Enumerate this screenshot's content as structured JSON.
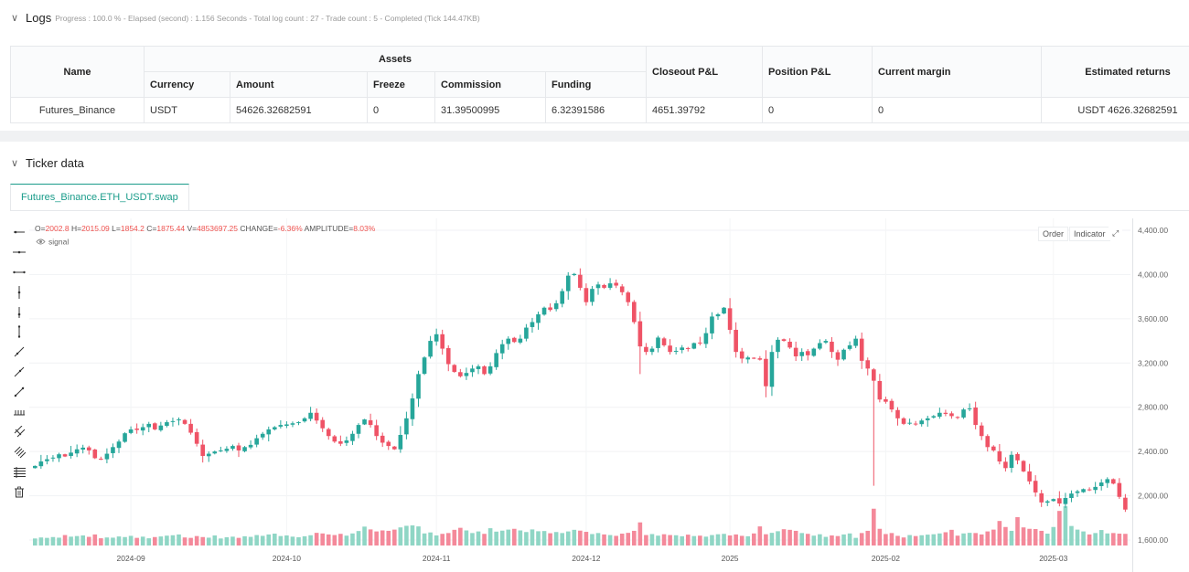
{
  "logs": {
    "title": "Logs",
    "meta": "Progress : 100.0 % - Elapsed (second) : 1.156  Seconds - Total log count : 27 - Trade count : 5 - Completed (Tick 144.47KB)"
  },
  "assets_table": {
    "headers": {
      "name": "Name",
      "assets": "Assets",
      "currency": "Currency",
      "amount": "Amount",
      "freeze": "Freeze",
      "commission": "Commission",
      "funding": "Funding",
      "closeout_pnl": "Closeout P&L",
      "position_pnl": "Position P&L",
      "current_margin": "Current margin",
      "estimated_returns": "Estimated returns"
    },
    "row": {
      "name": "Futures_Binance",
      "currency": "USDT",
      "amount": "54626.32682591",
      "freeze": "0",
      "commission": "31.39500995",
      "funding": "6.32391586",
      "closeout_pnl": "4651.39792",
      "position_pnl": "0",
      "current_margin": "0",
      "estimated_returns": "USDT 4626.32682591"
    }
  },
  "ticker": {
    "title": "Ticker data",
    "tab_label": "Futures_Binance.ETH_USDT.swap",
    "order_button": "Order",
    "indicator_button": "Indicator",
    "signal_label": "signal"
  },
  "ohlc_readout": {
    "o_label": "O=",
    "o": "2002.8",
    "h_label": "H=",
    "h": "2015.09",
    "l_label": "L=",
    "l": "1854.2",
    "c_label": "C=",
    "c": "1875.44",
    "v_label": "V=",
    "v": "4853697.25",
    "change_label": "CHANGE=",
    "change": "-6.36%",
    "amp_label": "AMPLITUDE=",
    "amp": "8.03%"
  },
  "colors": {
    "up": "#26a69a",
    "down": "#ef5366",
    "vol_up": "#8fd6c5",
    "vol_down": "#f4899a",
    "accent": "#1a9c8a",
    "red_text": "#ef5350"
  },
  "toolbar_icons": [
    "horizontal-ray-icon",
    "horizontal-line-icon",
    "horizontal-segment-icon",
    "vertical-line-icon",
    "vertical-ray-icon",
    "vertical-segment-icon",
    "trend-line-icon",
    "ray-line-icon",
    "extended-line-icon",
    "price-range-icon",
    "parallel-channel-icon",
    "fib-channel-icon",
    "fib-retracement-icon",
    "trash-icon"
  ],
  "chart_data": {
    "type": "candlestick",
    "y_ticks": [
      "4,400.00",
      "4,000.00",
      "3,600.00",
      "3,200.00",
      "2,800.00",
      "2,400.00",
      "2,000.00",
      "1,600.00"
    ],
    "y_tick_values": [
      4400,
      4000,
      3600,
      3200,
      2800,
      2400,
      2000,
      1600
    ],
    "x_ticks": [
      "2024-09",
      "2024-10",
      "2024-11",
      "2024-12",
      "2025",
      "2025-02",
      "2025-03"
    ],
    "x_tick_index": [
      16,
      42,
      67,
      92,
      116,
      142,
      170
    ],
    "ylim": [
      1560,
      4450
    ],
    "closes": [
      2270,
      2310,
      2330,
      2345,
      2375,
      2355,
      2390,
      2420,
      2435,
      2410,
      2340,
      2330,
      2380,
      2440,
      2490,
      2565,
      2600,
      2595,
      2620,
      2650,
      2600,
      2635,
      2665,
      2675,
      2690,
      2650,
      2570,
      2470,
      2360,
      2380,
      2400,
      2410,
      2425,
      2450,
      2410,
      2440,
      2460,
      2520,
      2560,
      2600,
      2620,
      2640,
      2645,
      2655,
      2665,
      2700,
      2750,
      2680,
      2610,
      2540,
      2490,
      2470,
      2500,
      2560,
      2640,
      2690,
      2640,
      2540,
      2480,
      2450,
      2420,
      2550,
      2700,
      2880,
      3100,
      3250,
      3400,
      3460,
      3330,
      3190,
      3120,
      3080,
      3110,
      3150,
      3170,
      3100,
      3170,
      3290,
      3370,
      3420,
      3390,
      3420,
      3520,
      3570,
      3640,
      3700,
      3680,
      3740,
      3850,
      3990,
      4005,
      3880,
      3750,
      3870,
      3910,
      3880,
      3920,
      3900,
      3840,
      3750,
      3570,
      3350,
      3300,
      3330,
      3430,
      3360,
      3300,
      3310,
      3340,
      3330,
      3380,
      3380,
      3470,
      3620,
      3640,
      3700,
      3500,
      3300,
      3240,
      3250,
      3240,
      3230,
      2990,
      3300,
      3410,
      3400,
      3340,
      3260,
      3300,
      3270,
      3330,
      3380,
      3400,
      3300,
      3230,
      3320,
      3360,
      3420,
      3220,
      3150,
      3040,
      2870,
      2850,
      2780,
      2700,
      2650,
      2660,
      2650,
      2680,
      2700,
      2720,
      2750,
      2740,
      2720,
      2710,
      2780,
      2790,
      2640,
      2540,
      2440,
      2410,
      2310,
      2250,
      2370,
      2320,
      2220,
      2130,
      2030,
      1940,
      1950,
      1970,
      1930,
      1980,
      2020,
      2040,
      2060,
      2050,
      2080,
      2120,
      2150,
      2110,
      1990,
      1875
    ],
    "volume_rel": [
      0.35,
      0.4,
      0.38,
      0.42,
      0.39,
      0.52,
      0.44,
      0.47,
      0.5,
      0.43,
      0.55,
      0.36,
      0.4,
      0.39,
      0.45,
      0.42,
      0.48,
      0.38,
      0.44,
      0.36,
      0.42,
      0.45,
      0.49,
      0.51,
      0.55,
      0.4,
      0.38,
      0.47,
      0.42,
      0.39,
      0.5,
      0.35,
      0.41,
      0.44,
      0.38,
      0.46,
      0.43,
      0.52,
      0.48,
      0.55,
      0.59,
      0.47,
      0.5,
      0.44,
      0.41,
      0.46,
      0.51,
      0.63,
      0.6,
      0.55,
      0.52,
      0.58,
      0.49,
      0.6,
      0.72,
      0.94,
      0.8,
      0.7,
      0.75,
      0.73,
      0.79,
      0.9,
      0.98,
      1.0,
      0.95,
      0.6,
      0.65,
      0.5,
      0.58,
      0.62,
      0.78,
      0.88,
      0.75,
      0.62,
      0.7,
      0.58,
      0.86,
      0.69,
      0.74,
      0.79,
      0.83,
      0.75,
      0.67,
      0.8,
      0.71,
      0.72,
      0.61,
      0.67,
      0.62,
      0.7,
      0.78,
      0.74,
      0.68,
      0.57,
      0.62,
      0.55,
      0.52,
      0.48,
      0.59,
      0.63,
      0.73,
      1.15,
      0.52,
      0.57,
      0.49,
      0.56,
      0.52,
      0.51,
      0.46,
      0.54,
      0.47,
      0.49,
      0.44,
      0.52,
      0.56,
      0.58,
      0.5,
      0.55,
      0.48,
      0.46,
      0.6,
      0.95,
      0.56,
      0.63,
      0.71,
      0.81,
      0.78,
      0.73,
      0.62,
      0.58,
      0.49,
      0.56,
      0.43,
      0.5,
      0.47,
      0.55,
      0.6,
      0.38,
      0.62,
      0.73,
      1.83,
      0.83,
      0.57,
      0.62,
      0.48,
      0.4,
      0.52,
      0.47,
      0.51,
      0.54,
      0.56,
      0.6,
      0.66,
      0.78,
      0.49,
      0.6,
      0.63,
      0.62,
      0.55,
      0.7,
      0.79,
      1.22,
      0.92,
      0.73,
      1.41,
      0.9,
      0.83,
      0.82,
      0.73,
      0.59,
      0.92,
      1.72,
      1.95,
      0.97,
      0.79,
      0.7,
      0.55,
      0.62,
      0.77,
      0.6,
      0.62,
      0.59,
      0.58,
      0.56,
      0.57,
      0.61,
      1.13
    ]
  }
}
